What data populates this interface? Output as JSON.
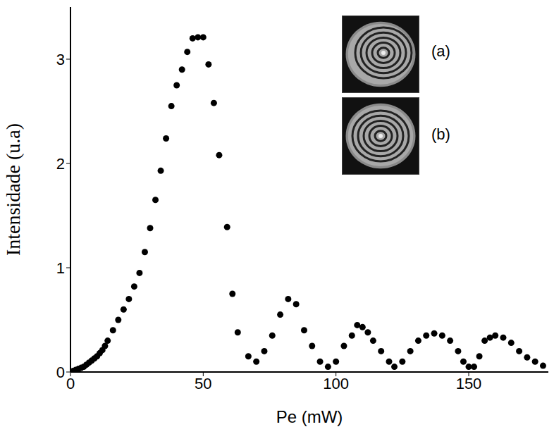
{
  "chart_data": {
    "type": "scatter",
    "x_label": "Pe (mW)",
    "y_label": "Intensidade (u.a)",
    "annotations": [
      "(a)",
      "(b)"
    ],
    "color": "#000000",
    "marker": "circle",
    "xlim": [
      0,
      180
    ],
    "ylim": [
      0,
      3.5
    ],
    "xticks": [
      0,
      50,
      100,
      150
    ],
    "yticks": [
      0,
      1,
      2,
      3
    ],
    "x": [
      0,
      1,
      2,
      3,
      4,
      5,
      6,
      7,
      8,
      9,
      10,
      11,
      12,
      13,
      14,
      16,
      18,
      20,
      22,
      24,
      26,
      28,
      30,
      32,
      34,
      36,
      38,
      40,
      42,
      44,
      46,
      48,
      50,
      52,
      54,
      56,
      59,
      61,
      63,
      67,
      70,
      73,
      76,
      79,
      82,
      85,
      88,
      91,
      94,
      97,
      100,
      103,
      106,
      108,
      110,
      112,
      114,
      117,
      120,
      122,
      125,
      128,
      131,
      134,
      137,
      140,
      143,
      146,
      148,
      150,
      152,
      154,
      156,
      158,
      160,
      163,
      166,
      169,
      172,
      175,
      178
    ],
    "values": [
      0,
      0.01,
      0.02,
      0.03,
      0.04,
      0.05,
      0.07,
      0.09,
      0.11,
      0.13,
      0.15,
      0.18,
      0.21,
      0.25,
      0.3,
      0.4,
      0.5,
      0.6,
      0.7,
      0.82,
      0.95,
      1.15,
      1.38,
      1.65,
      1.93,
      2.24,
      2.55,
      2.75,
      2.9,
      3.07,
      3.2,
      3.21,
      3.21,
      2.95,
      2.58,
      2.08,
      1.39,
      0.75,
      0.38,
      0.15,
      0.1,
      0.2,
      0.35,
      0.55,
      0.7,
      0.65,
      0.4,
      0.25,
      0.1,
      0.05,
      0.1,
      0.25,
      0.35,
      0.45,
      0.43,
      0.38,
      0.3,
      0.2,
      0.1,
      0.05,
      0.1,
      0.2,
      0.3,
      0.35,
      0.37,
      0.35,
      0.3,
      0.2,
      0.1,
      0.05,
      0.05,
      0.15,
      0.3,
      0.33,
      0.35,
      0.33,
      0.28,
      0.2,
      0.14,
      0.1,
      0.06
    ]
  }
}
